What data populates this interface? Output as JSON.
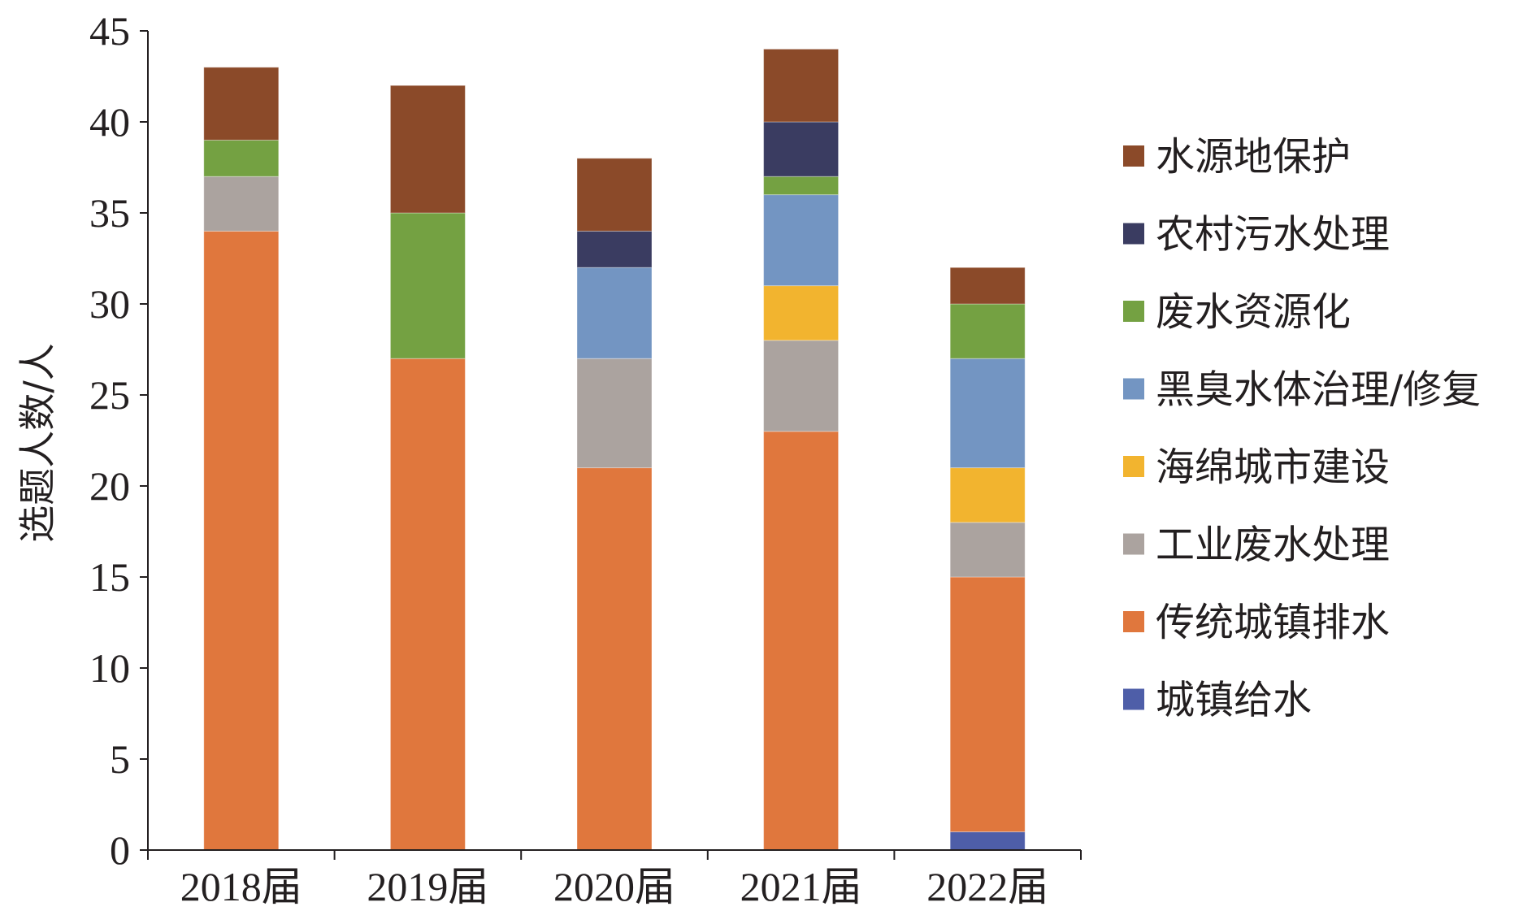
{
  "chart_data": {
    "type": "bar",
    "stacked": true,
    "categories": [
      "2018届",
      "2019届",
      "2020届",
      "2021届",
      "2022届"
    ],
    "ylabel": "选题人数/人",
    "ylim": [
      0,
      45
    ],
    "yticks": [
      0,
      5,
      10,
      15,
      20,
      25,
      30,
      35,
      40,
      45
    ],
    "grid": false,
    "legend_position": "right",
    "series": [
      {
        "name": "城镇给水",
        "color": "#4e5ea8",
        "values": [
          0,
          0,
          0,
          0,
          1
        ]
      },
      {
        "name": "传统城镇排水",
        "color": "#e0773d",
        "values": [
          34,
          27,
          21,
          23,
          14
        ]
      },
      {
        "name": "工业废水处理",
        "color": "#aba39f",
        "values": [
          3,
          0,
          6,
          5,
          3
        ]
      },
      {
        "name": "海绵城市建设",
        "color": "#f2b42f",
        "values": [
          0,
          0,
          0,
          3,
          3
        ]
      },
      {
        "name": "黑臭水体治理/修复",
        "color": "#7395c2",
        "values": [
          0,
          0,
          5,
          5,
          6
        ]
      },
      {
        "name": "废水资源化",
        "color": "#74a142",
        "values": [
          2,
          8,
          0,
          1,
          3
        ]
      },
      {
        "name": "农村污水处理",
        "color": "#3a3c61",
        "values": [
          0,
          0,
          2,
          3,
          0
        ]
      },
      {
        "name": "水源地保护",
        "color": "#8b4a29",
        "values": [
          4,
          7,
          4,
          4,
          2
        ]
      }
    ],
    "legend_order": [
      "水源地保护",
      "农村污水处理",
      "废水资源化",
      "黑臭水体治理/修复",
      "海绵城市建设",
      "工业废水处理",
      "传统城镇排水",
      "城镇给水"
    ]
  }
}
